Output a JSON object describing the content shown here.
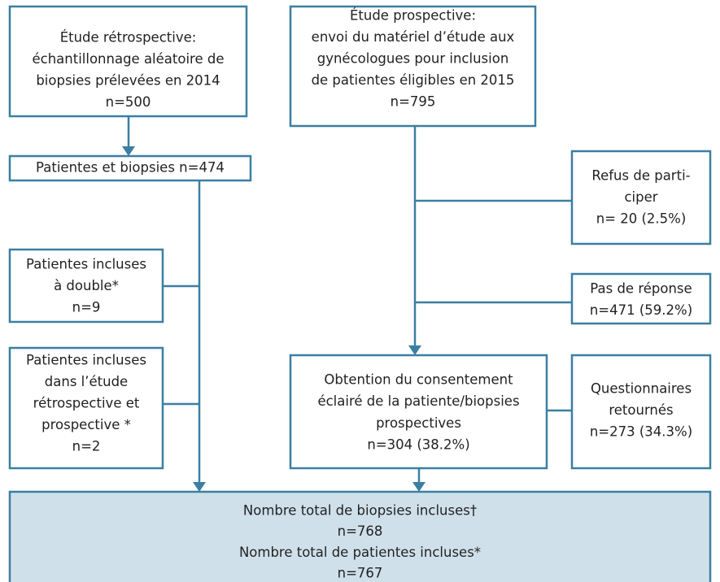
{
  "nodes": [
    {
      "lines": [
        "Étude rétrospective:",
        "échantillonnage aléatoire de",
        "biopsies prélevées en 2014",
        "n=500"
      ]
    },
    {
      "lines": [
        "Étude prospective:",
        "envoi du matériel d’étude aux",
        "gynécologues pour inclusion",
        "de patientes éligibles en 2015",
        "n=795"
      ]
    },
    {
      "lines": [
        "Patientes et biopsies n=474"
      ]
    },
    {
      "lines": [
        "Patientes incluses",
        "à double*",
        "n=9"
      ]
    },
    {
      "lines": [
        "Patientes incluses",
        "dans l’étude",
        "rétrospective et",
        "prospective *",
        "n=2"
      ]
    },
    {
      "lines": [
        "Refus de parti-",
        "ciper",
        "n= 20 (2.5%)"
      ]
    },
    {
      "lines": [
        "Pas de réponse",
        "n=471 (59.2%)"
      ]
    },
    {
      "lines": [
        "Obtention du consentement",
        "éclairé de la patiente/biopsies",
        "prospectives",
        "n=304 (38.2%)"
      ]
    },
    {
      "lines": [
        "Questionnaires",
        "retournés",
        "n=273 (34.3%)"
      ]
    },
    {
      "lines": [
        "Nombre total de biopsies incluses†",
        "n=768",
        "Nombre total de patientes incluses*",
        "n=767"
      ]
    }
  ]
}
